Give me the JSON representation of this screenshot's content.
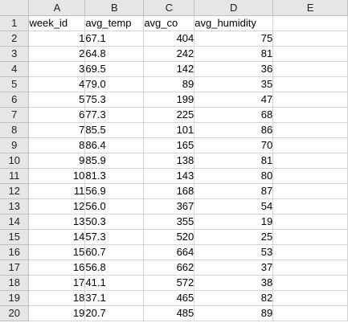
{
  "columns": [
    "A",
    "B",
    "C",
    "D",
    "E"
  ],
  "header_row": {
    "num": "1",
    "cells": [
      "week_id",
      "avg_temp",
      "avg_co",
      "avg_humidity",
      ""
    ]
  },
  "rows": [
    {
      "num": "2",
      "week_id": "1",
      "avg_temp": "67.1",
      "avg_co": "404",
      "avg_humidity": "75"
    },
    {
      "num": "3",
      "week_id": "2",
      "avg_temp": "64.8",
      "avg_co": "242",
      "avg_humidity": "81"
    },
    {
      "num": "4",
      "week_id": "3",
      "avg_temp": "69.5",
      "avg_co": "142",
      "avg_humidity": "36"
    },
    {
      "num": "5",
      "week_id": "4",
      "avg_temp": "79.0",
      "avg_co": "89",
      "avg_humidity": "35"
    },
    {
      "num": "6",
      "week_id": "5",
      "avg_temp": "75.3",
      "avg_co": "199",
      "avg_humidity": "47"
    },
    {
      "num": "7",
      "week_id": "6",
      "avg_temp": "77.3",
      "avg_co": "225",
      "avg_humidity": "68"
    },
    {
      "num": "8",
      "week_id": "7",
      "avg_temp": "85.5",
      "avg_co": "101",
      "avg_humidity": "86"
    },
    {
      "num": "9",
      "week_id": "8",
      "avg_temp": "86.4",
      "avg_co": "165",
      "avg_humidity": "70"
    },
    {
      "num": "10",
      "week_id": "9",
      "avg_temp": "85.9",
      "avg_co": "138",
      "avg_humidity": "81"
    },
    {
      "num": "11",
      "week_id": "10",
      "avg_temp": "81.3",
      "avg_co": "143",
      "avg_humidity": "80"
    },
    {
      "num": "12",
      "week_id": "11",
      "avg_temp": "56.9",
      "avg_co": "168",
      "avg_humidity": "87"
    },
    {
      "num": "13",
      "week_id": "12",
      "avg_temp": "56.0",
      "avg_co": "367",
      "avg_humidity": "54"
    },
    {
      "num": "14",
      "week_id": "13",
      "avg_temp": "50.3",
      "avg_co": "355",
      "avg_humidity": "19"
    },
    {
      "num": "15",
      "week_id": "14",
      "avg_temp": "57.3",
      "avg_co": "520",
      "avg_humidity": "25"
    },
    {
      "num": "16",
      "week_id": "15",
      "avg_temp": "60.7",
      "avg_co": "664",
      "avg_humidity": "53"
    },
    {
      "num": "17",
      "week_id": "16",
      "avg_temp": "56.8",
      "avg_co": "662",
      "avg_humidity": "37"
    },
    {
      "num": "18",
      "week_id": "17",
      "avg_temp": "41.1",
      "avg_co": "572",
      "avg_humidity": "38"
    },
    {
      "num": "19",
      "week_id": "18",
      "avg_temp": "37.1",
      "avg_co": "465",
      "avg_humidity": "82"
    },
    {
      "num": "20",
      "week_id": "19",
      "avg_temp": "20.7",
      "avg_co": "485",
      "avg_humidity": "89"
    }
  ],
  "colors": {
    "header_bg": "#e6e6e6",
    "grid_line": "#d4d4d4",
    "header_line": "#c0c0c0"
  }
}
